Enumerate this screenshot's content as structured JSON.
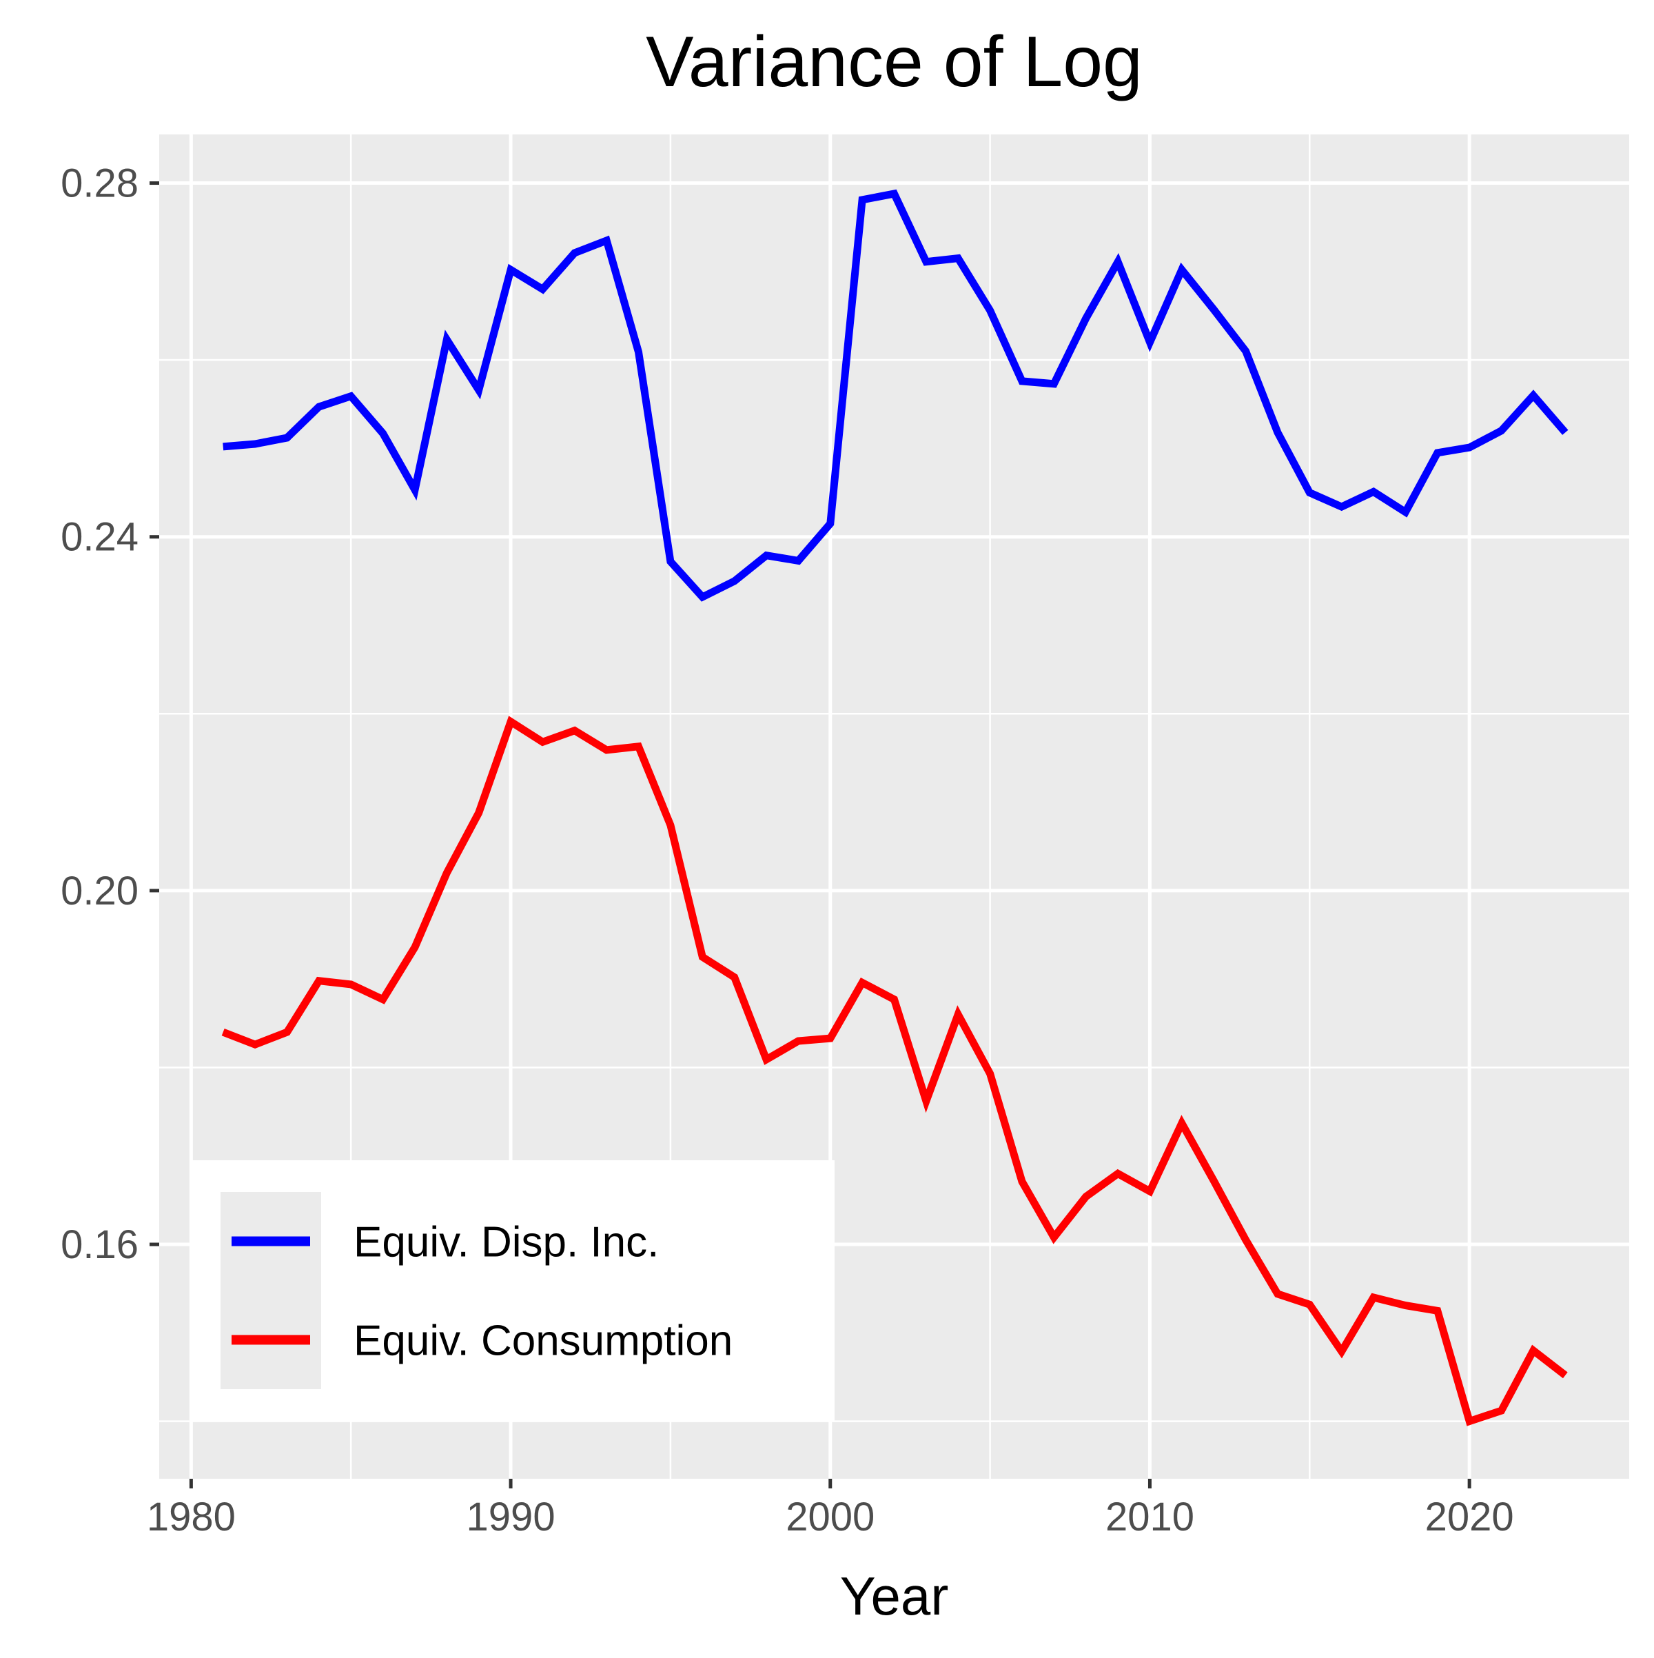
{
  "chart_data": {
    "type": "line",
    "title": "Variance of Log",
    "xlabel": "Year",
    "ylabel": "",
    "xlim": [
      1979,
      2025
    ],
    "ylim": [
      0.1335,
      0.2855
    ],
    "x_ticks": [
      1980,
      1990,
      2000,
      2010,
      2020
    ],
    "x_tick_labels": [
      "1980",
      "1990",
      "2000",
      "2010",
      "2020"
    ],
    "y_ticks": [
      0.16,
      0.2,
      0.24,
      0.28
    ],
    "y_tick_labels": [
      "0.16",
      "0.20",
      "0.24",
      "0.28"
    ],
    "grid": true,
    "background": "#EBEBEB",
    "legend": {
      "position": "bottom-left"
    },
    "x": [
      1981,
      1982,
      1983,
      1984,
      1985,
      1986,
      1987,
      1988,
      1989,
      1990,
      1991,
      1992,
      1993,
      1994,
      1995,
      1996,
      1997,
      1998,
      1999,
      2000,
      2001,
      2002,
      2003,
      2004,
      2005,
      2006,
      2007,
      2008,
      2009,
      2010,
      2011,
      2012,
      2013,
      2014,
      2015,
      2016,
      2017,
      2018,
      2019,
      2020,
      2021,
      2022,
      2023
    ],
    "series": [
      {
        "name": "Equiv. Disp. Inc.",
        "color": "#0000FF",
        "values": [
          0.2502,
          0.2505,
          0.2512,
          0.2547,
          0.2559,
          0.2517,
          0.2453,
          0.2623,
          0.2566,
          0.2702,
          0.268,
          0.2721,
          0.2735,
          0.2609,
          0.2372,
          0.2332,
          0.235,
          0.2379,
          0.2373,
          0.2415,
          0.2781,
          0.2788,
          0.2711,
          0.2715,
          0.2656,
          0.2576,
          0.2573,
          0.2647,
          0.2711,
          0.262,
          0.2702,
          0.2657,
          0.261,
          0.2518,
          0.245,
          0.2434,
          0.2451,
          0.2428,
          0.2495,
          0.2501,
          0.252,
          0.256,
          0.2518
        ]
      },
      {
        "name": "Equiv. Consumption",
        "color": "#FF0000",
        "values": [
          0.184,
          0.1826,
          0.184,
          0.1898,
          0.1894,
          0.1877,
          0.1936,
          0.202,
          0.2088,
          0.2191,
          0.2168,
          0.2181,
          0.2159,
          0.2163,
          0.2074,
          0.1925,
          0.1902,
          0.1809,
          0.183,
          0.1833,
          0.1896,
          0.1877,
          0.1762,
          0.186,
          0.1793,
          0.1671,
          0.1608,
          0.1654,
          0.168,
          0.166,
          0.1737,
          0.1672,
          0.1605,
          0.1544,
          0.1532,
          0.1479,
          0.154,
          0.1531,
          0.1525,
          0.14,
          0.1412,
          0.148,
          0.1452
        ]
      }
    ]
  }
}
